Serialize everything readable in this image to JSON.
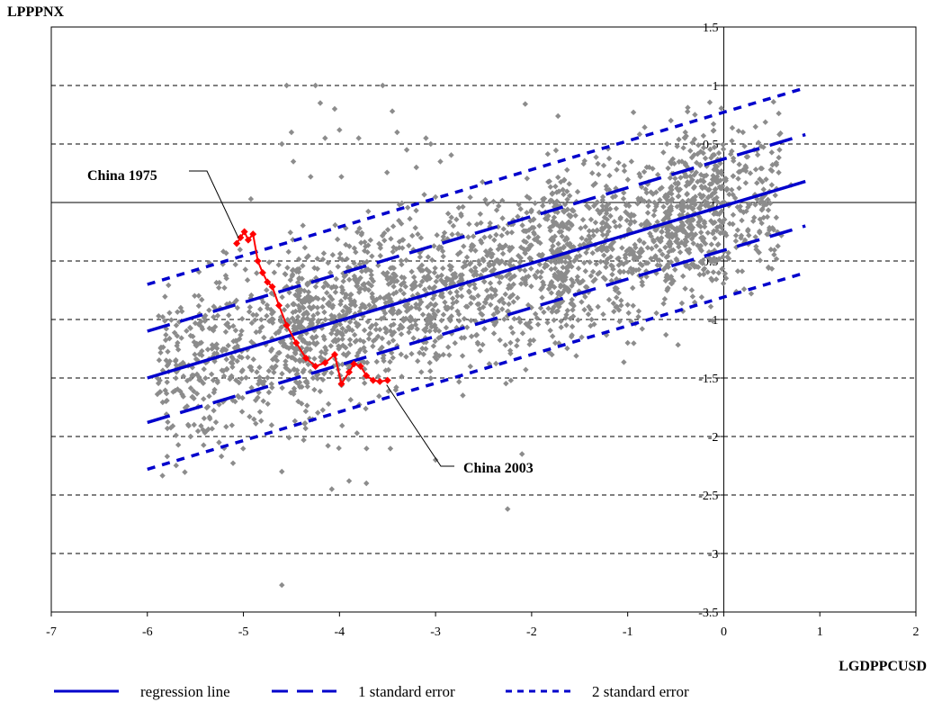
{
  "chart_data": {
    "type": "scatter",
    "title": "",
    "ylabel": "LPPPNX",
    "xlabel": "LGDPPCUSD",
    "xlim": [
      -7,
      2
    ],
    "ylim": [
      -3.5,
      1.5
    ],
    "xticks": [
      -7,
      -6,
      -5,
      -4,
      -3,
      -2,
      -1,
      0,
      1,
      2
    ],
    "yticks": [
      1.5,
      1,
      0.5,
      0,
      -0.5,
      -1,
      -1.5,
      -2,
      -2.5,
      -3,
      -3.5
    ],
    "grid": "horizontal dashed",
    "legend_position": "bottom",
    "colors": {
      "scatter": "#8c8c8c",
      "china": "#ff0000",
      "lines": "#0000cc"
    },
    "series": [
      {
        "type": "line",
        "name": "regression line",
        "style": "solid",
        "x": [
          -6,
          0.85
        ],
        "y": [
          -1.5,
          0.18
        ]
      },
      {
        "type": "line",
        "name": "1 standard error",
        "style": "dashed",
        "x": [
          -6,
          0.85
        ],
        "y": [
          -1.1,
          0.58
        ]
      },
      {
        "type": "line",
        "name": "1 standard error",
        "style": "dashed",
        "x": [
          -6,
          0.85
        ],
        "y": [
          -1.88,
          -0.2
        ]
      },
      {
        "type": "line",
        "name": "2 standard error",
        "style": "dotted",
        "x": [
          -6,
          0.85
        ],
        "y": [
          -0.7,
          0.98
        ]
      },
      {
        "type": "line",
        "name": "2 standard error",
        "style": "dotted",
        "x": [
          -6,
          0.85
        ],
        "y": [
          -2.28,
          -0.6
        ]
      },
      {
        "type": "line",
        "name": "",
        "style": "china",
        "x": [
          -5.07,
          -5.03,
          -4.99,
          -4.95,
          -4.9,
          -4.85,
          -4.8,
          -4.75,
          -4.7,
          -4.63,
          -4.55,
          -4.45,
          -4.35,
          -4.25,
          -4.15,
          -4.05,
          -3.98,
          -3.9,
          -3.85,
          -3.78,
          -3.72,
          -3.65,
          -3.58,
          -3.5
        ],
        "y": [
          -0.35,
          -0.3,
          -0.25,
          -0.32,
          -0.27,
          -0.5,
          -0.6,
          -0.68,
          -0.72,
          -0.88,
          -1.05,
          -1.2,
          -1.33,
          -1.4,
          -1.37,
          -1.3,
          -1.55,
          -1.45,
          -1.38,
          -1.4,
          -1.48,
          -1.52,
          -1.53,
          -1.52
        ]
      },
      {
        "type": "scatter",
        "name": "",
        "x": [
          -4.55,
          -4.5,
          -4.48,
          -4.25,
          -4.2,
          -4.15,
          -4.05,
          -4.0,
          -3.98,
          -3.8,
          -3.55,
          -3.45,
          -3.4,
          -3.3,
          -3.2,
          -3.1,
          -4.6,
          -4.3,
          -3.05,
          -2.95,
          -5.3,
          -5.55,
          -4.6,
          -4.08,
          -3.9,
          -3.72,
          -2.25,
          -2.1,
          -4.6,
          -5.2,
          -3.0,
          -1.0,
          -0.55,
          -0.4,
          -0.3,
          0.2,
          0.5,
          0.7
        ],
        "y": [
          1.0,
          0.6,
          0.35,
          1.0,
          0.85,
          0.55,
          0.8,
          0.62,
          0.22,
          0.55,
          1.0,
          0.78,
          0.6,
          0.45,
          0.3,
          0.55,
          0.5,
          0.22,
          0.5,
          0.35,
          -1.6,
          -2.0,
          -2.3,
          -2.45,
          -2.38,
          -2.4,
          -2.62,
          -2.15,
          -3.27,
          -2.1,
          -2.2,
          -1.2,
          0.7,
          0.6,
          0.75,
          0.6,
          0.15,
          0.15
        ]
      }
    ],
    "annotations": [
      {
        "text": "China 1975",
        "x": -5.07,
        "y": -0.35
      },
      {
        "text": "China 2003",
        "x": -3.5,
        "y": -1.52
      }
    ],
    "legend": [
      {
        "label": "regression line",
        "style": "solid"
      },
      {
        "label": "1 standard error",
        "style": "dashed"
      },
      {
        "label": "2 standard error",
        "style": "dotted"
      }
    ]
  }
}
